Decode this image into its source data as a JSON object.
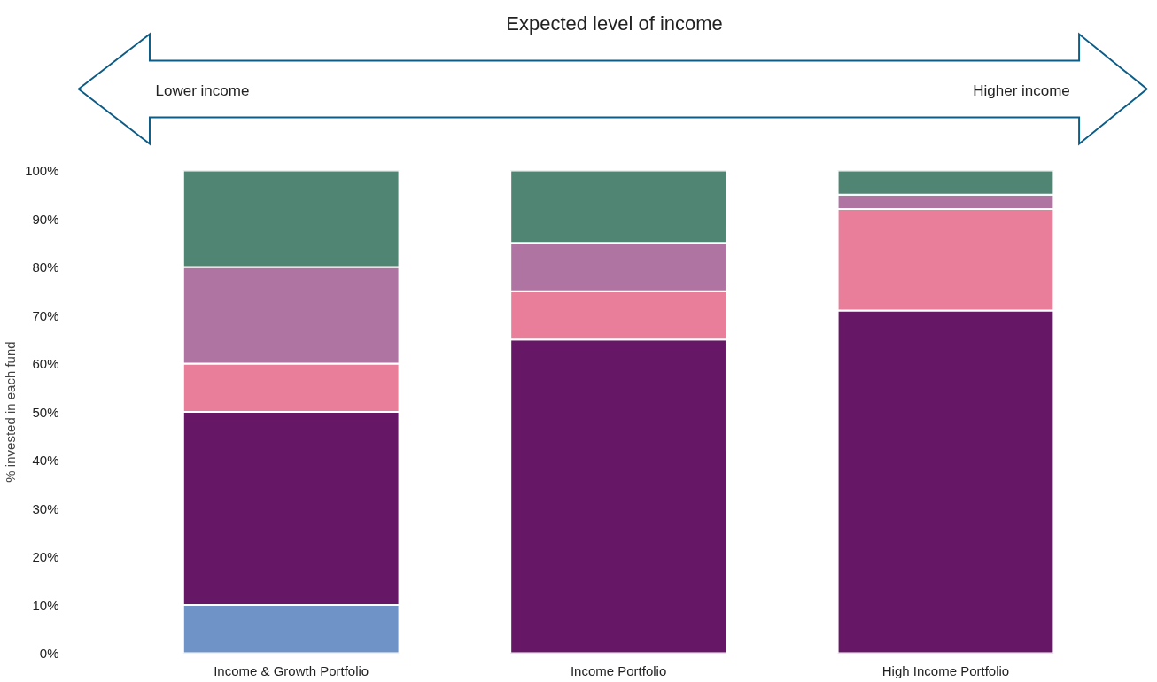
{
  "chart_data": {
    "type": "bar",
    "stacked": true,
    "title": "Expected level of income",
    "annotations": [
      "Lower income",
      "Higher income"
    ],
    "ylabel": "% invested in each fund",
    "categories": [
      "Income & Growth Portfolio",
      "Income Portfolio",
      "High Income Portfolio"
    ],
    "series": [
      {
        "color": "#6f93c6",
        "values": [
          10,
          null,
          null
        ]
      },
      {
        "color": "#661867",
        "values": [
          40,
          65,
          71
        ]
      },
      {
        "color": "#e87e9a",
        "values": [
          10,
          10,
          21
        ]
      },
      {
        "color": "#b074a2",
        "values": [
          20,
          10,
          3
        ]
      },
      {
        "color": "#508573",
        "values": [
          20,
          15,
          5
        ]
      }
    ],
    "ylim": [
      0,
      100
    ],
    "yticks": [
      {
        "value": 0,
        "label": "0%"
      },
      {
        "value": 10,
        "label": "10%"
      },
      {
        "value": 20,
        "label": "20%"
      },
      {
        "value": 30,
        "label": "30%"
      },
      {
        "value": 40,
        "label": "40%"
      },
      {
        "value": 50,
        "label": "50%"
      },
      {
        "value": 60,
        "label": "60%"
      },
      {
        "value": 70,
        "label": "70%"
      },
      {
        "value": 80,
        "label": "80%"
      },
      {
        "value": 90,
        "label": "90%"
      },
      {
        "value": 100,
        "label": "100%"
      }
    ],
    "grid": false
  }
}
